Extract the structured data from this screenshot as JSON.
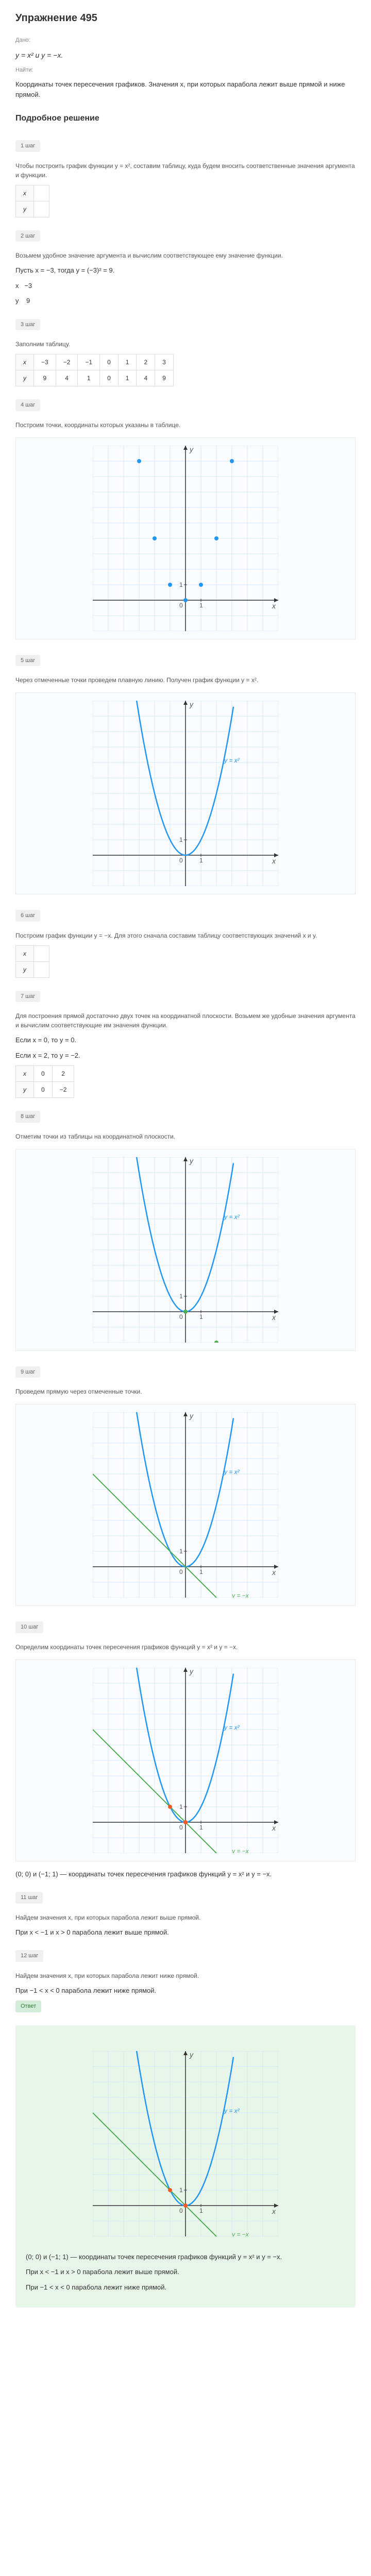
{
  "title": "Упражнение 495",
  "given_label": "Дано:",
  "formula1": "y = x² и y = −x.",
  "find_label": "Найти:",
  "find_text": "Координаты точек пересечения графиков. Значения x, при которых парабола лежит выше прямой и ниже прямой.",
  "solution_title": "Подробное решение",
  "steps": {
    "s1": {
      "badge": "1 шаг",
      "text": "Чтобы построить график функции y = x², составим таблицу, куда будем вносить соответственные значения аргумента и функции."
    },
    "s2": {
      "badge": "2 шаг",
      "text": "Возьмем удобное значение аргумента и вычислим соответствующее ему значение функции.",
      "line1": "Пусть x = −3, тогда y = (−3)² = 9.",
      "line2": "x &nbsp; −3",
      "line3": "y &nbsp;&nbsp; 9"
    },
    "s3": {
      "badge": "3 шаг",
      "text": "Заполним таблицу."
    },
    "s4": {
      "badge": "4 шаг",
      "text": "Построим точки, координаты которых указаны в таблице."
    },
    "s5": {
      "badge": "5 шаг",
      "text": "Через отмеченные точки проведем плавную линию. Получен график функции y = x²."
    },
    "s6": {
      "badge": "6 шаг",
      "text": "Построим график функции y = −x. Для этого сначала составим таблицу соответствующих значений x и y."
    },
    "s7": {
      "badge": "7 шаг",
      "text": "Для построения прямой достаточно двух точек на координатной плоскости. Возьмем же удобные значения аргумента и вычислим соответствующие им значения функции.",
      "line1": "Если x = 0, то y = 0.",
      "line2": "Если x = 2, то y = −2."
    },
    "s8": {
      "badge": "8 шаг",
      "text": "Отметим точки из таблицы на координатной плоскости."
    },
    "s9": {
      "badge": "9 шаг",
      "text": "Проведем прямую через отмеченные точки."
    },
    "s10": {
      "badge": "10 шаг",
      "text": "Определим координаты точек пересечения графиков функций y = x² и y = −x.",
      "result": "(0; 0) и (−1; 1) — координаты точек пересечения графиков функций y = x² и y = −x."
    },
    "s11": {
      "badge": "11 шаг",
      "text": "Найдем значения x, при которых парабола лежит выше прямой.",
      "result": "При x < −1 и x > 0 парабола лежит выше прямой."
    },
    "s12": {
      "badge": "12 шаг",
      "text": "Найдем значения x, при которых парабола лежит ниже прямой.",
      "result": "При −1 < x < 0 парабола лежит ниже прямой."
    }
  },
  "table_xy_empty": {
    "rows": [
      [
        "x",
        ""
      ],
      [
        "y",
        ""
      ]
    ]
  },
  "table_xy_full": {
    "rows": [
      [
        "x",
        "−3",
        "−2",
        "−1",
        "0",
        "1",
        "2",
        "3"
      ],
      [
        "y",
        "9",
        "4",
        "1",
        "0",
        "1",
        "4",
        "9"
      ]
    ]
  },
  "table_xy2": {
    "rows": [
      [
        "x",
        "0",
        "2"
      ],
      [
        "y",
        "0",
        "−2"
      ]
    ]
  },
  "answer_label": "Ответ",
  "answer": {
    "line1": "(0; 0) и (−1; 1) — координаты точек пересечения графиков функций y = x² и y = −x.",
    "line2": "При x < −1 и x > 0 парабола лежит выше прямой.",
    "line3": "При −1 < x < 0 парабола лежит ниже прямой."
  },
  "chart": {
    "bg": "#fafcff",
    "grid": "#d8e8f5",
    "axis": "#333",
    "point": "#2196f3",
    "parabola": "#2196f3",
    "line": "#4caf50",
    "text": "#555"
  }
}
